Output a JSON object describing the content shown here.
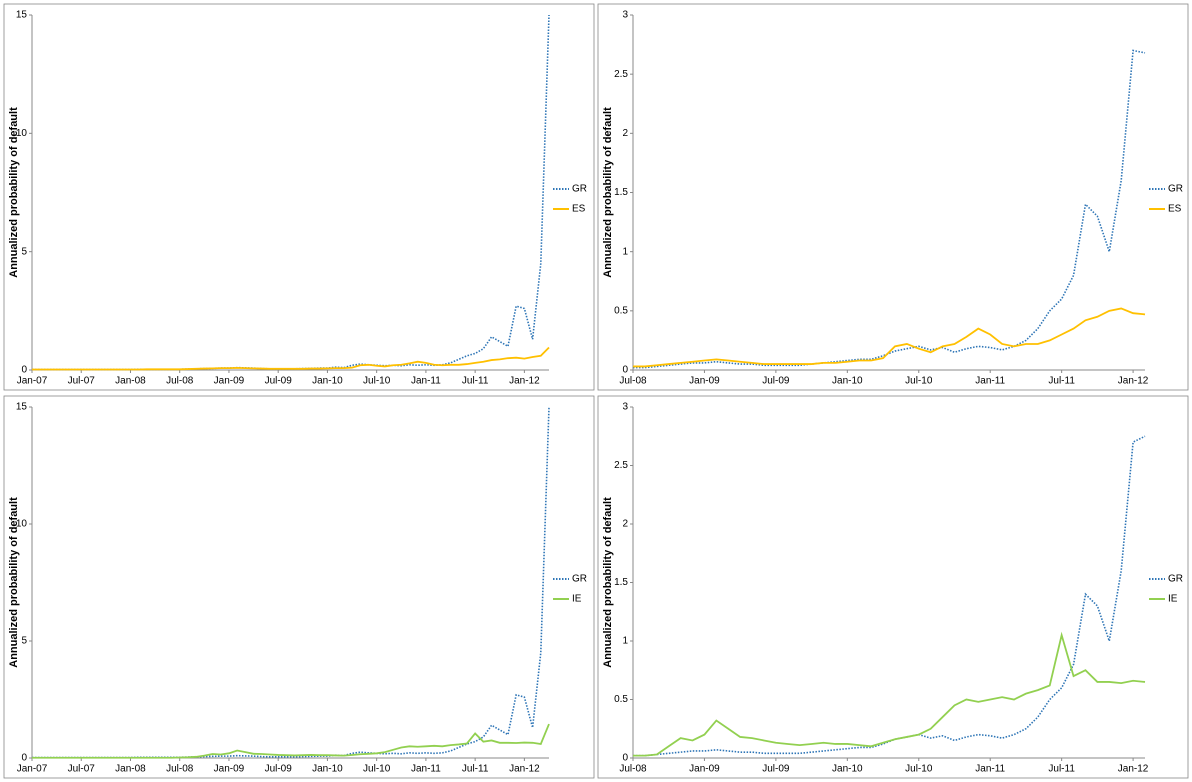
{
  "chart_data": [
    {
      "type": "line",
      "y_label": "Annualized probability of default",
      "ylim": [
        0,
        15
      ],
      "yticks": [
        0,
        5,
        10,
        15
      ],
      "xticks": [
        "Jan-07",
        "Jul-07",
        "Jan-08",
        "Jul-08",
        "Jan-09",
        "Jul-09",
        "Jan-10",
        "Jul-10",
        "Jan-11",
        "Jul-11",
        "Jan-12"
      ],
      "x": [
        "Jan-07",
        "Feb-07",
        "Mar-07",
        "Apr-07",
        "May-07",
        "Jun-07",
        "Jul-07",
        "Aug-07",
        "Sep-07",
        "Oct-07",
        "Nov-07",
        "Dec-07",
        "Jan-08",
        "Feb-08",
        "Mar-08",
        "Apr-08",
        "May-08",
        "Jun-08",
        "Jul-08",
        "Aug-08",
        "Sep-08",
        "Oct-08",
        "Nov-08",
        "Dec-08",
        "Jan-09",
        "Feb-09",
        "Mar-09",
        "Apr-09",
        "May-09",
        "Jun-09",
        "Jul-09",
        "Aug-09",
        "Sep-09",
        "Oct-09",
        "Nov-09",
        "Dec-09",
        "Jan-10",
        "Feb-10",
        "Mar-10",
        "Apr-10",
        "May-10",
        "Jun-10",
        "Jul-10",
        "Aug-10",
        "Sep-10",
        "Oct-10",
        "Nov-10",
        "Dec-10",
        "Jan-11",
        "Feb-11",
        "Mar-11",
        "Apr-11",
        "May-11",
        "Jun-11",
        "Jul-11",
        "Aug-11",
        "Sep-11",
        "Oct-11",
        "Nov-11",
        "Dec-11",
        "Jan-12",
        "Feb-12",
        "Mar-12",
        "Apr-12"
      ],
      "series": [
        {
          "name": "GR",
          "color": "#2e75b6",
          "line_style": "dotted",
          "values": [
            0.02,
            0.02,
            0.02,
            0.02,
            0.02,
            0.02,
            0.02,
            0.02,
            0.02,
            0.02,
            0.02,
            0.02,
            0.02,
            0.03,
            0.03,
            0.03,
            0.03,
            0.03,
            0.03,
            0.04,
            0.05,
            0.06,
            0.07,
            0.08,
            0.08,
            0.1,
            0.09,
            0.08,
            0.06,
            0.05,
            0.05,
            0.05,
            0.05,
            0.06,
            0.07,
            0.08,
            0.08,
            0.12,
            0.1,
            0.2,
            0.25,
            0.22,
            0.2,
            0.18,
            0.2,
            0.18,
            0.22,
            0.2,
            0.22,
            0.2,
            0.22,
            0.3,
            0.45,
            0.6,
            0.7,
            0.9,
            1.4,
            1.2,
            1.0,
            2.7,
            2.6,
            1.3,
            4.5,
            15
          ]
        },
        {
          "name": "ES",
          "color": "#ffc000",
          "line_style": "solid",
          "values": [
            0.02,
            0.02,
            0.02,
            0.02,
            0.02,
            0.02,
            0.02,
            0.02,
            0.02,
            0.02,
            0.02,
            0.02,
            0.02,
            0.02,
            0.03,
            0.03,
            0.03,
            0.03,
            0.03,
            0.04,
            0.05,
            0.06,
            0.07,
            0.08,
            0.08,
            0.09,
            0.08,
            0.07,
            0.06,
            0.05,
            0.05,
            0.05,
            0.05,
            0.05,
            0.06,
            0.06,
            0.07,
            0.08,
            0.08,
            0.1,
            0.2,
            0.22,
            0.18,
            0.15,
            0.2,
            0.22,
            0.28,
            0.35,
            0.3,
            0.22,
            0.2,
            0.22,
            0.22,
            0.25,
            0.3,
            0.35,
            0.42,
            0.45,
            0.5,
            0.52,
            0.48,
            0.55,
            0.6,
            0.95
          ]
        }
      ]
    },
    {
      "type": "line",
      "y_label": "Annualized probability of default",
      "ylim": [
        0,
        3
      ],
      "yticks": [
        0,
        0.5,
        1,
        1.5,
        2,
        2.5,
        3
      ],
      "xticks": [
        "Jul-08",
        "Jan-09",
        "Jul-09",
        "Jan-10",
        "Jul-10",
        "Jan-11",
        "Jul-11",
        "Jan-12"
      ],
      "x": [
        "Jul-08",
        "Aug-08",
        "Sep-08",
        "Oct-08",
        "Nov-08",
        "Dec-08",
        "Jan-09",
        "Feb-09",
        "Mar-09",
        "Apr-09",
        "May-09",
        "Jun-09",
        "Jul-09",
        "Aug-09",
        "Sep-09",
        "Oct-09",
        "Nov-09",
        "Dec-09",
        "Jan-10",
        "Feb-10",
        "Mar-10",
        "Apr-10",
        "May-10",
        "Jun-10",
        "Jul-10",
        "Aug-10",
        "Sep-10",
        "Oct-10",
        "Nov-10",
        "Dec-10",
        "Jan-11",
        "Feb-11",
        "Mar-11",
        "Apr-11",
        "May-11",
        "Jun-11",
        "Jul-11",
        "Aug-11",
        "Sep-11",
        "Oct-11",
        "Nov-11",
        "Dec-11",
        "Jan-12",
        "Feb-12"
      ],
      "series": [
        {
          "name": "GR",
          "color": "#2e75b6",
          "line_style": "dotted",
          "values": [
            0.02,
            0.02,
            0.03,
            0.04,
            0.05,
            0.06,
            0.06,
            0.07,
            0.06,
            0.05,
            0.05,
            0.04,
            0.04,
            0.04,
            0.04,
            0.05,
            0.06,
            0.07,
            0.08,
            0.09,
            0.09,
            0.12,
            0.16,
            0.18,
            0.2,
            0.17,
            0.19,
            0.15,
            0.18,
            0.2,
            0.19,
            0.17,
            0.2,
            0.25,
            0.35,
            0.5,
            0.6,
            0.8,
            1.4,
            1.3,
            1.0,
            1.6,
            2.7,
            2.68
          ]
        },
        {
          "name": "ES",
          "color": "#ffc000",
          "line_style": "solid",
          "values": [
            0.03,
            0.03,
            0.04,
            0.05,
            0.06,
            0.07,
            0.08,
            0.09,
            0.08,
            0.07,
            0.06,
            0.05,
            0.05,
            0.05,
            0.05,
            0.05,
            0.06,
            0.06,
            0.07,
            0.08,
            0.08,
            0.1,
            0.2,
            0.22,
            0.18,
            0.15,
            0.2,
            0.22,
            0.28,
            0.35,
            0.3,
            0.22,
            0.2,
            0.22,
            0.22,
            0.25,
            0.3,
            0.35,
            0.42,
            0.45,
            0.5,
            0.52,
            0.48,
            0.47
          ]
        }
      ]
    },
    {
      "type": "line",
      "y_label": "Annualized probability of default",
      "ylim": [
        0,
        15
      ],
      "yticks": [
        0,
        5,
        10,
        15
      ],
      "xticks": [
        "Jan-07",
        "Jul-07",
        "Jan-08",
        "Jul-08",
        "Jan-09",
        "Jul-09",
        "Jan-10",
        "Jul-10",
        "Jan-11",
        "Jul-11",
        "Jan-12"
      ],
      "x": [
        "Jan-07",
        "Feb-07",
        "Mar-07",
        "Apr-07",
        "May-07",
        "Jun-07",
        "Jul-07",
        "Aug-07",
        "Sep-07",
        "Oct-07",
        "Nov-07",
        "Dec-07",
        "Jan-08",
        "Feb-08",
        "Mar-08",
        "Apr-08",
        "May-08",
        "Jun-08",
        "Jul-08",
        "Aug-08",
        "Sep-08",
        "Oct-08",
        "Nov-08",
        "Dec-08",
        "Jan-09",
        "Feb-09",
        "Mar-09",
        "Apr-09",
        "May-09",
        "Jun-09",
        "Jul-09",
        "Aug-09",
        "Sep-09",
        "Oct-09",
        "Nov-09",
        "Dec-09",
        "Jan-10",
        "Feb-10",
        "Mar-10",
        "Apr-10",
        "May-10",
        "Jun-10",
        "Jul-10",
        "Aug-10",
        "Sep-10",
        "Oct-10",
        "Nov-10",
        "Dec-10",
        "Jan-11",
        "Feb-11",
        "Mar-11",
        "Apr-11",
        "May-11",
        "Jun-11",
        "Jul-11",
        "Aug-11",
        "Sep-11",
        "Oct-11",
        "Nov-11",
        "Dec-11",
        "Jan-12",
        "Feb-12",
        "Mar-12",
        "Apr-12"
      ],
      "series": [
        {
          "name": "GR",
          "color": "#2e75b6",
          "line_style": "dotted",
          "values": [
            0.02,
            0.02,
            0.02,
            0.02,
            0.02,
            0.02,
            0.02,
            0.02,
            0.02,
            0.02,
            0.02,
            0.02,
            0.02,
            0.03,
            0.03,
            0.03,
            0.03,
            0.03,
            0.03,
            0.04,
            0.05,
            0.06,
            0.07,
            0.08,
            0.08,
            0.1,
            0.09,
            0.08,
            0.06,
            0.05,
            0.05,
            0.05,
            0.05,
            0.06,
            0.07,
            0.08,
            0.08,
            0.12,
            0.1,
            0.2,
            0.25,
            0.22,
            0.2,
            0.18,
            0.2,
            0.18,
            0.22,
            0.2,
            0.22,
            0.2,
            0.22,
            0.3,
            0.45,
            0.6,
            0.7,
            0.9,
            1.4,
            1.2,
            1.0,
            2.7,
            2.6,
            1.3,
            4.5,
            15
          ]
        },
        {
          "name": "IE",
          "color": "#92d050",
          "line_style": "solid",
          "values": [
            0.01,
            0.01,
            0.01,
            0.01,
            0.01,
            0.01,
            0.01,
            0.01,
            0.01,
            0.01,
            0.01,
            0.01,
            0.01,
            0.01,
            0.01,
            0.01,
            0.01,
            0.01,
            0.02,
            0.03,
            0.05,
            0.1,
            0.17,
            0.15,
            0.2,
            0.32,
            0.25,
            0.18,
            0.17,
            0.15,
            0.13,
            0.12,
            0.11,
            0.12,
            0.13,
            0.12,
            0.12,
            0.11,
            0.1,
            0.13,
            0.16,
            0.18,
            0.2,
            0.25,
            0.35,
            0.45,
            0.5,
            0.48,
            0.5,
            0.52,
            0.5,
            0.55,
            0.58,
            0.62,
            1.05,
            0.7,
            0.75,
            0.65,
            0.65,
            0.64,
            0.66,
            0.65,
            0.6,
            1.45
          ]
        }
      ]
    },
    {
      "type": "line",
      "y_label": "Annualized probability of default",
      "ylim": [
        0,
        3
      ],
      "yticks": [
        0,
        0.5,
        1,
        1.5,
        2,
        2.5,
        3
      ],
      "xticks": [
        "Jul-08",
        "Jan-09",
        "Jul-09",
        "Jan-10",
        "Jul-10",
        "Jan-11",
        "Jul-11",
        "Jan-12"
      ],
      "x": [
        "Jul-08",
        "Aug-08",
        "Sep-08",
        "Oct-08",
        "Nov-08",
        "Dec-08",
        "Jan-09",
        "Feb-09",
        "Mar-09",
        "Apr-09",
        "May-09",
        "Jun-09",
        "Jul-09",
        "Aug-09",
        "Sep-09",
        "Oct-09",
        "Nov-09",
        "Dec-09",
        "Jan-10",
        "Feb-10",
        "Mar-10",
        "Apr-10",
        "May-10",
        "Jun-10",
        "Jul-10",
        "Aug-10",
        "Sep-10",
        "Oct-10",
        "Nov-10",
        "Dec-10",
        "Jan-11",
        "Feb-11",
        "Mar-11",
        "Apr-11",
        "May-11",
        "Jun-11",
        "Jul-11",
        "Aug-11",
        "Sep-11",
        "Oct-11",
        "Nov-11",
        "Dec-11",
        "Jan-12",
        "Feb-12"
      ],
      "series": [
        {
          "name": "GR",
          "color": "#2e75b6",
          "line_style": "dotted",
          "values": [
            0.02,
            0.02,
            0.03,
            0.04,
            0.05,
            0.06,
            0.06,
            0.07,
            0.06,
            0.05,
            0.05,
            0.04,
            0.04,
            0.04,
            0.04,
            0.05,
            0.06,
            0.07,
            0.08,
            0.09,
            0.09,
            0.12,
            0.16,
            0.18,
            0.2,
            0.17,
            0.19,
            0.15,
            0.18,
            0.2,
            0.19,
            0.17,
            0.2,
            0.25,
            0.35,
            0.5,
            0.6,
            0.8,
            1.4,
            1.3,
            1.0,
            1.6,
            2.7,
            2.75
          ]
        },
        {
          "name": "IE",
          "color": "#92d050",
          "line_style": "solid",
          "values": [
            0.02,
            0.02,
            0.03,
            0.1,
            0.17,
            0.15,
            0.2,
            0.32,
            0.25,
            0.18,
            0.17,
            0.15,
            0.13,
            0.12,
            0.11,
            0.12,
            0.13,
            0.12,
            0.12,
            0.11,
            0.1,
            0.13,
            0.16,
            0.18,
            0.2,
            0.25,
            0.35,
            0.45,
            0.5,
            0.48,
            0.5,
            0.52,
            0.5,
            0.55,
            0.58,
            0.62,
            1.05,
            0.7,
            0.75,
            0.65,
            0.65,
            0.64,
            0.66,
            0.65
          ]
        }
      ]
    }
  ]
}
